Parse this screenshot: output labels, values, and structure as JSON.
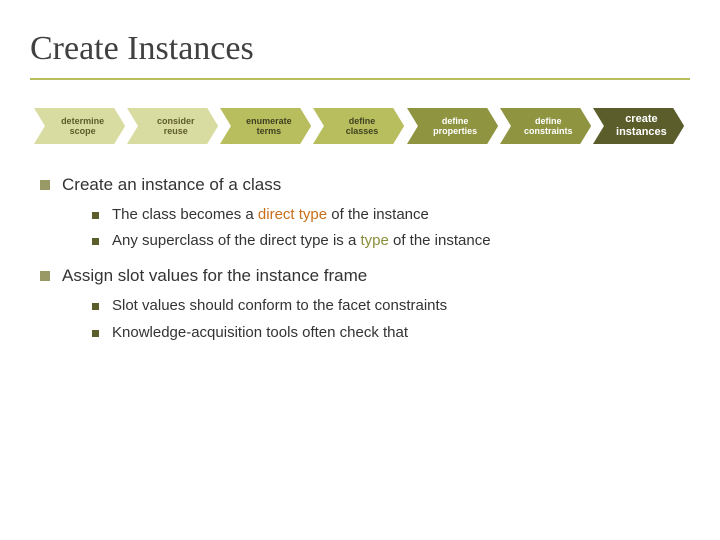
{
  "title": "Create Instances",
  "process": {
    "steps": [
      {
        "label": "determine\nscope",
        "fill": "#d9dca0",
        "text": "#5b5e2b",
        "active": false
      },
      {
        "label": "consider\nreuse",
        "fill": "#d9dca0",
        "text": "#5b5e2b",
        "active": false
      },
      {
        "label": "enumerate\nterms",
        "fill": "#b8be5e",
        "text": "#3f4220",
        "active": false
      },
      {
        "label": "define\nclasses",
        "fill": "#b8be5e",
        "text": "#3f4220",
        "active": false
      },
      {
        "label": "define\nproperties",
        "fill": "#8f9440",
        "text": "#ffffff",
        "active": false
      },
      {
        "label": "define\nconstraints",
        "fill": "#8f9440",
        "text": "#ffffff",
        "active": false
      },
      {
        "label": "create\ninstances",
        "fill": "#5b5e2b",
        "text": "#ffffff",
        "active": true
      }
    ],
    "active_label_fontsize": 11,
    "label_fontsize": 9,
    "arrow_height": 36
  },
  "bullets": [
    {
      "text": "Create an instance of a class",
      "sub": [
        {
          "pre": "The class becomes a ",
          "hl": "direct type",
          "hl_color": "#c96f1a",
          "post": " of the instance"
        },
        {
          "pre": "Any superclass of the direct type is a ",
          "hl": "type",
          "hl_color": "#8a8e3a",
          "post": " of the instance"
        }
      ]
    },
    {
      "text": "Assign slot values for the instance frame",
      "sub": [
        {
          "pre": "Slot values should conform to the facet constraints",
          "hl": "",
          "hl_color": "",
          "post": ""
        },
        {
          "pre": "Knowledge-acquisition tools often check that",
          "hl": "",
          "hl_color": "",
          "post": ""
        }
      ]
    }
  ],
  "colors": {
    "title_underline": "#b8be5e",
    "top_bullet": "#999966",
    "sub_bullet": "#5b5e2b",
    "text": "#333333",
    "background": "#ffffff"
  },
  "typography": {
    "title_family": "Georgia",
    "title_size_pt": 26,
    "body_family": "Verdana",
    "top_bullet_size_pt": 13,
    "sub_bullet_size_pt": 11
  }
}
